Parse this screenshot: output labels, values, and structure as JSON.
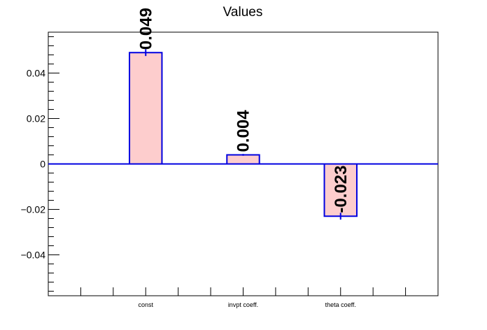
{
  "colors": {
    "bar_fill": "#fdcdcd",
    "bar_stroke": "#0000e0",
    "axis": "#000000",
    "zero_line": "#0000e0",
    "value_label": "#000000"
  },
  "chart_data": {
    "type": "bar",
    "title": "Values",
    "xlabel": "",
    "ylabel": "",
    "categories": [
      "const",
      "invpt coeff.",
      "theta coeff."
    ],
    "values": [
      0.049,
      0.004,
      -0.023
    ],
    "errors": [
      0.0015,
      0.0004,
      0.0015
    ],
    "value_labels": [
      "0.049",
      "0.004",
      "-0.023"
    ],
    "ylim": [
      -0.058,
      0.058
    ],
    "y_ticks": [
      -0.04,
      -0.02,
      0,
      0.02,
      0.04
    ],
    "y_tick_labels": [
      "−0.04",
      "−0.02",
      "0",
      "0.02",
      "0.04"
    ],
    "grid": false,
    "legend": "none"
  }
}
